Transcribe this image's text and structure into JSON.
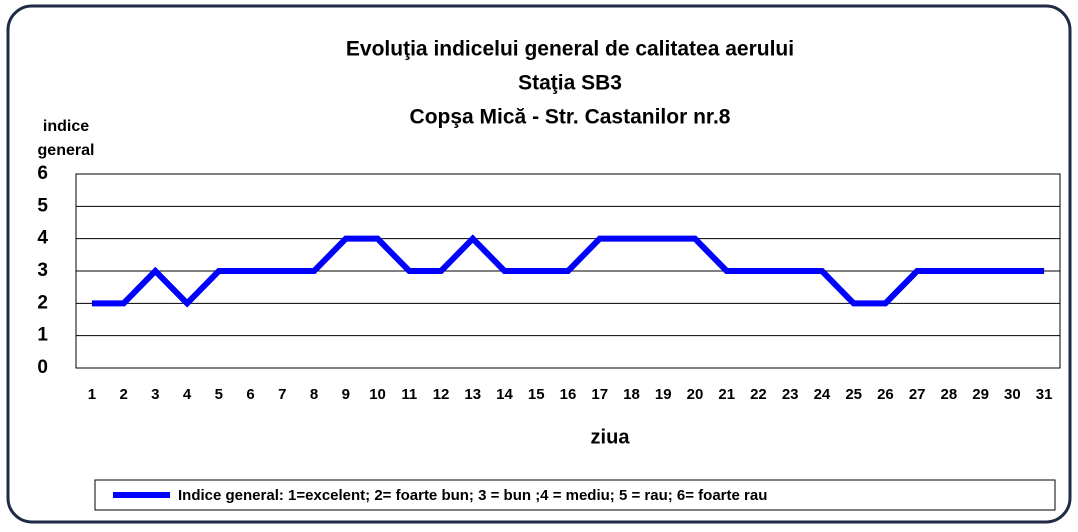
{
  "chart_data": {
    "type": "line",
    "title": [
      "Evoluţia  indicelui general de calitatea aerului",
      "Staţia SB3",
      "Copşa Mică - Str. Castanilor nr.8"
    ],
    "y_label": [
      "indice",
      "general"
    ],
    "x_label": "ziua",
    "categories": [
      "1",
      "2",
      "3",
      "4",
      "5",
      "6",
      "7",
      "8",
      "9",
      "10",
      "11",
      "12",
      "13",
      "14",
      "15",
      "16",
      "17",
      "18",
      "19",
      "20",
      "21",
      "22",
      "23",
      "24",
      "25",
      "26",
      "27",
      "28",
      "29",
      "30",
      "31"
    ],
    "series": [
      {
        "name": "Indice general: 1=excelent; 2= foarte bun; 3 = bun ;4 = mediu; 5 = rau; 6= foarte rau",
        "color": "#0000ff",
        "values": [
          2,
          2,
          3,
          2,
          3,
          3,
          3,
          3,
          4,
          4,
          3,
          3,
          4,
          3,
          3,
          3,
          4,
          4,
          4,
          4,
          3,
          3,
          3,
          3,
          2,
          2,
          3,
          3,
          3,
          3,
          3
        ]
      }
    ],
    "ylim": [
      0,
      6
    ],
    "yticks": [
      0,
      1,
      2,
      3,
      4,
      5,
      6
    ],
    "grid": true,
    "legend": "bottom"
  }
}
